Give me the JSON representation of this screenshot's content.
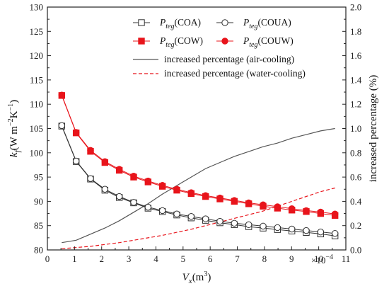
{
  "chart_data": {
    "type": "line",
    "xlabel_base": "V",
    "xlabel_sub": "x",
    "xlabel_unit": "(m",
    "xlabel_sup": "3",
    "xlabel_close": ")",
    "x_multiplier": "×10",
    "x_multiplier_exp": "−4",
    "ylabel_left_base": "k",
    "ylabel_left_sub": "f",
    "ylabel_left_unit_a": "(W m",
    "ylabel_left_sup_a": "−2",
    "ylabel_left_unit_b": "K",
    "ylabel_left_sup_b": "−1",
    "ylabel_left_close": ")",
    "ylabel_right": "increased percentage (%)",
    "xlim": [
      0,
      11
    ],
    "ylim_left": [
      80,
      130
    ],
    "ylim_right": [
      0,
      2.0
    ],
    "x_ticks": [
      "0",
      "1",
      "2",
      "3",
      "4",
      "5",
      "6",
      "7",
      "8",
      "9",
      "10",
      "11"
    ],
    "y_left_ticks": [
      "80",
      "85",
      "90",
      "95",
      "100",
      "105",
      "110",
      "115",
      "120",
      "125",
      "130"
    ],
    "y_right_ticks": [
      "0.0",
      "0.2",
      "0.4",
      "0.6",
      "0.8",
      "1.0",
      "1.2",
      "1.4",
      "1.6",
      "1.8",
      "2.0"
    ],
    "x": [
      0.53,
      1.06,
      1.59,
      2.12,
      2.65,
      3.18,
      3.71,
      4.24,
      4.77,
      5.3,
      5.83,
      6.36,
      6.89,
      7.42,
      7.95,
      8.48,
      9.01,
      9.54,
      10.07,
      10.6
    ],
    "series": [
      {
        "name_main": "P",
        "name_sub": "teg",
        "name_tail": "(COA)",
        "axis": "left",
        "color": "#333333",
        "marker": "open-square",
        "values": [
          105.5,
          98.2,
          94.6,
          92.3,
          90.8,
          89.7,
          88.6,
          87.9,
          87.2,
          86.6,
          86.1,
          85.6,
          85.2,
          84.8,
          84.5,
          84.2,
          83.9,
          83.6,
          83.3,
          82.9
        ]
      },
      {
        "name_main": "P",
        "name_sub": "teg",
        "name_tail": "(COUA)",
        "axis": "left",
        "color": "#333333",
        "marker": "open-circle",
        "values": [
          105.6,
          98.3,
          94.7,
          92.5,
          91.0,
          89.8,
          88.8,
          88.1,
          87.4,
          86.9,
          86.4,
          85.9,
          85.5,
          85.2,
          84.9,
          84.6,
          84.3,
          84.0,
          83.7,
          83.4
        ]
      },
      {
        "name_main": "P",
        "name_sub": "teg",
        "name_tail": "(COW)",
        "axis": "left",
        "color": "#e8141b",
        "marker": "filled-square",
        "values": [
          111.8,
          104.1,
          100.3,
          98.0,
          96.4,
          95.0,
          94.0,
          93.1,
          92.3,
          91.6,
          91.0,
          90.5,
          90.0,
          89.5,
          89.0,
          88.6,
          88.2,
          87.9,
          87.5,
          87.1
        ]
      },
      {
        "name_main": "P",
        "name_sub": "teg",
        "name_tail": "(COUW)",
        "axis": "left",
        "color": "#e8141b",
        "marker": "filled-circle",
        "values": [
          111.9,
          104.2,
          100.5,
          98.2,
          96.6,
          95.2,
          94.2,
          93.3,
          92.5,
          91.8,
          91.2,
          90.7,
          90.2,
          89.7,
          89.3,
          88.9,
          88.5,
          88.1,
          87.8,
          87.4
        ]
      },
      {
        "name": "increased percentage (air-cooling)",
        "axis": "right",
        "color": "#555555",
        "line": "solid",
        "x": [
          0.53,
          1.06,
          1.59,
          2.12,
          2.65,
          3.18,
          3.71,
          4.24,
          4.77,
          5.3,
          5.83,
          6.36,
          6.89,
          7.42,
          7.95,
          8.48,
          9.01,
          9.54,
          10.07,
          10.6
        ],
        "values": [
          0.06,
          0.08,
          0.13,
          0.18,
          0.24,
          0.31,
          0.38,
          0.46,
          0.53,
          0.6,
          0.67,
          0.72,
          0.77,
          0.81,
          0.85,
          0.88,
          0.92,
          0.95,
          0.98,
          1.0
        ]
      },
      {
        "name": "increased percentage (water-cooling)",
        "axis": "right",
        "color": "#e8141b",
        "line": "dashed",
        "x": [
          0.53,
          1.06,
          1.59,
          2.12,
          2.65,
          3.18,
          3.71,
          4.24,
          4.77,
          5.3,
          5.83,
          6.36,
          6.89,
          7.42,
          7.95,
          8.48,
          9.01,
          9.54,
          10.07,
          10.6
        ],
        "values": [
          0.01,
          0.02,
          0.03,
          0.045,
          0.06,
          0.08,
          0.1,
          0.12,
          0.145,
          0.17,
          0.2,
          0.23,
          0.26,
          0.29,
          0.32,
          0.36,
          0.4,
          0.44,
          0.48,
          0.51
        ]
      }
    ],
    "legend_position": "top-right",
    "grid": false
  }
}
